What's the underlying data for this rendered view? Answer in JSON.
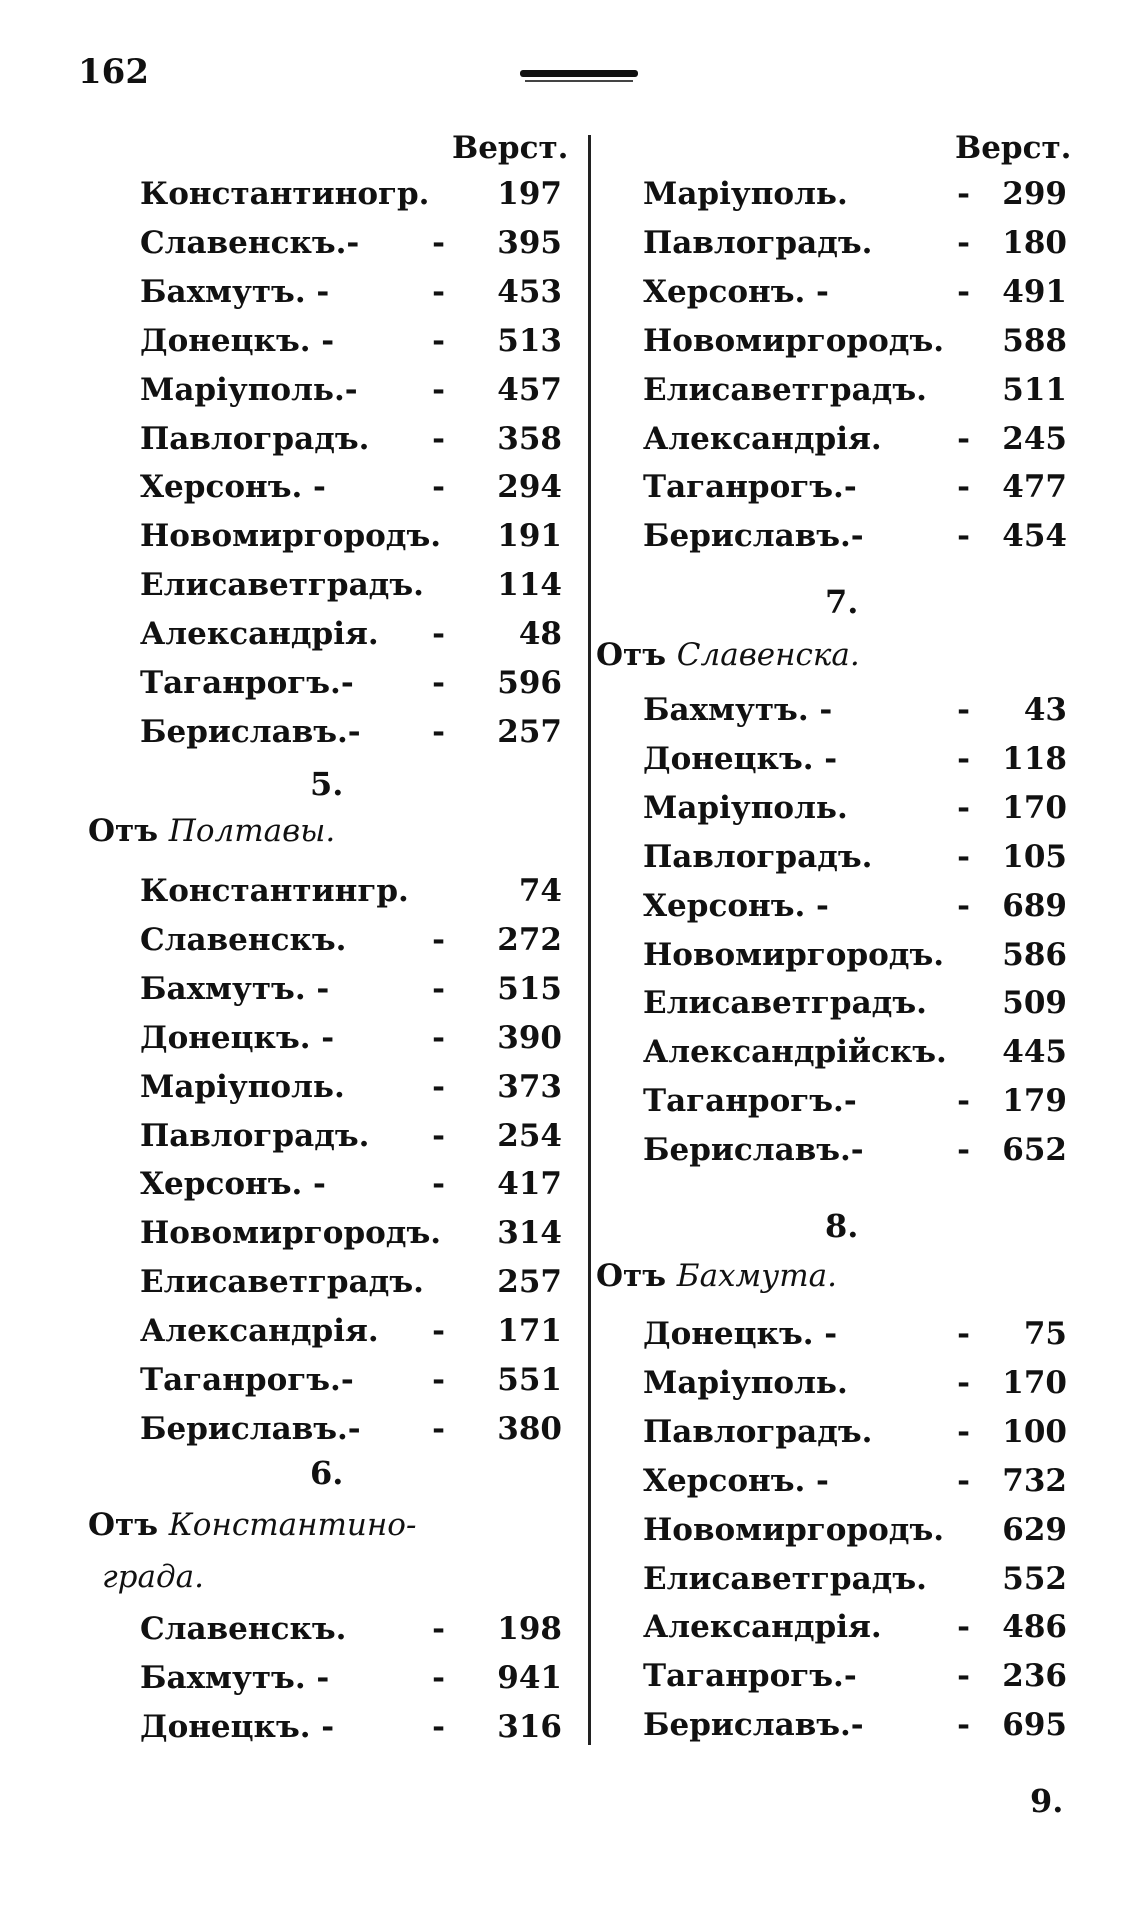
{
  "page_number": "162",
  "unit_label_left": "Верст.",
  "unit_label_right": "Верст.",
  "sections": [
    {
      "id": "cont",
      "number": "",
      "from_prefix": "",
      "from_place": "",
      "from_place_cont": "",
      "rows": [
        {
          "name": "Константиногр.",
          "dash": "",
          "value": "197"
        },
        {
          "name": "Славенскъ.-",
          "dash": "-",
          "value": "395"
        },
        {
          "name": "Бахмутъ. -",
          "dash": "-",
          "value": "453"
        },
        {
          "name": "Донецкъ. -",
          "dash": "-",
          "value": "513"
        },
        {
          "name": "Маріуполь.-",
          "dash": "-",
          "value": "457"
        },
        {
          "name": "Павлоградъ.",
          "dash": "-",
          "value": "358"
        },
        {
          "name": "Херсонъ. -",
          "dash": "-",
          "value": "294"
        },
        {
          "name": "Новомиргородъ.",
          "dash": "",
          "value": "191"
        },
        {
          "name": "Елисаветградъ.",
          "dash": "",
          "value": "114"
        },
        {
          "name": "Александрія.",
          "dash": "-",
          "value": "48"
        },
        {
          "name": "Таганрогъ.-",
          "dash": "-",
          "value": "596"
        },
        {
          "name": "Бериславъ.-",
          "dash": "-",
          "value": "257"
        }
      ]
    },
    {
      "id": "s5",
      "number": "5.",
      "from_prefix": "Отъ",
      "from_place": "Полтавы.",
      "from_place_cont": "",
      "rows": [
        {
          "name": "Константингр.",
          "dash": "",
          "value": "74"
        },
        {
          "name": "Славенскъ.",
          "dash": "-",
          "value": "272"
        },
        {
          "name": "Бахмутъ. -",
          "dash": "-",
          "value": "515"
        },
        {
          "name": "Донецкъ. -",
          "dash": "-",
          "value": "390"
        },
        {
          "name": "Маріуполь.",
          "dash": "-",
          "value": "373"
        },
        {
          "name": "Павлоградъ.",
          "dash": "-",
          "value": "254"
        },
        {
          "name": "Херсонъ. -",
          "dash": "-",
          "value": "417"
        },
        {
          "name": "Новомиргородъ.",
          "dash": "",
          "value": "314"
        },
        {
          "name": "Елисаветградъ.",
          "dash": "",
          "value": "257"
        },
        {
          "name": "Александрія.",
          "dash": "-",
          "value": "171"
        },
        {
          "name": "Таганрогъ.-",
          "dash": "-",
          "value": "551"
        },
        {
          "name": "Бериславъ.-",
          "dash": "-",
          "value": "380"
        }
      ]
    },
    {
      "id": "s6",
      "number": "6.",
      "from_prefix": "Отъ",
      "from_place": "Константино-",
      "from_place_cont": "града.",
      "rows": [
        {
          "name": "Славенскъ.",
          "dash": "-",
          "value": "198"
        },
        {
          "name": "Бахмутъ. -",
          "dash": "-",
          "value": "941"
        },
        {
          "name": "Донецкъ. -",
          "dash": "-",
          "value": "316"
        }
      ]
    },
    {
      "id": "cont-r",
      "number": "",
      "from_prefix": "",
      "from_place": "",
      "from_place_cont": "",
      "rows": [
        {
          "name": "Маріуполь.",
          "dash": "-",
          "value": "299"
        },
        {
          "name": "Павлоградъ.",
          "dash": "-",
          "value": "180"
        },
        {
          "name": "Херсонъ. -",
          "dash": "-",
          "value": "491"
        },
        {
          "name": "Новомиргородъ.",
          "dash": "",
          "value": "588"
        },
        {
          "name": "Елисаветградъ.",
          "dash": "",
          "value": "511"
        },
        {
          "name": "Александрія.",
          "dash": "-",
          "value": "245"
        },
        {
          "name": "Таганрогъ.-",
          "dash": "-",
          "value": "477"
        },
        {
          "name": "Бериславъ.-",
          "dash": "-",
          "value": "454"
        }
      ]
    },
    {
      "id": "s7",
      "number": "7.",
      "from_prefix": "Отъ",
      "from_place": "Славенска.",
      "from_place_cont": "",
      "rows": [
        {
          "name": "Бахмутъ. -",
          "dash": "-",
          "value": "43"
        },
        {
          "name": "Донецкъ. -",
          "dash": "-",
          "value": "118"
        },
        {
          "name": "Маріуполь.",
          "dash": "-",
          "value": "170"
        },
        {
          "name": "Павлоградъ.",
          "dash": "-",
          "value": "105"
        },
        {
          "name": "Херсонъ. -",
          "dash": "-",
          "value": "689"
        },
        {
          "name": "Новомиргородъ.",
          "dash": "",
          "value": "586"
        },
        {
          "name": "Елисаветградъ.",
          "dash": "",
          "value": "509"
        },
        {
          "name": "Александрійскъ.",
          "dash": "",
          "value": "445"
        },
        {
          "name": "Таганрогъ.-",
          "dash": "-",
          "value": "179"
        },
        {
          "name": "Бериславъ.-",
          "dash": "-",
          "value": "652"
        }
      ]
    },
    {
      "id": "s8",
      "number": "8.",
      "from_prefix": "Отъ",
      "from_place": "Бахмута.",
      "from_place_cont": "",
      "rows": [
        {
          "name": "Донецкъ. -",
          "dash": "-",
          "value": "75"
        },
        {
          "name": "Маріуполь.",
          "dash": "-",
          "value": "170"
        },
        {
          "name": "Павлоградъ.",
          "dash": "-",
          "value": "100"
        },
        {
          "name": "Херсонъ. -",
          "dash": "-",
          "value": "732"
        },
        {
          "name": "Новомиргородъ.",
          "dash": "",
          "value": "629"
        },
        {
          "name": "Елисаветградъ.",
          "dash": "",
          "value": "552"
        },
        {
          "name": "Александрія.",
          "dash": "-",
          "value": "486"
        },
        {
          "name": "Таганрогъ.-",
          "dash": "-",
          "value": "236"
        },
        {
          "name": "Бериславъ.-",
          "dash": "-",
          "value": "695"
        }
      ]
    }
  ],
  "next_section_number": "9."
}
